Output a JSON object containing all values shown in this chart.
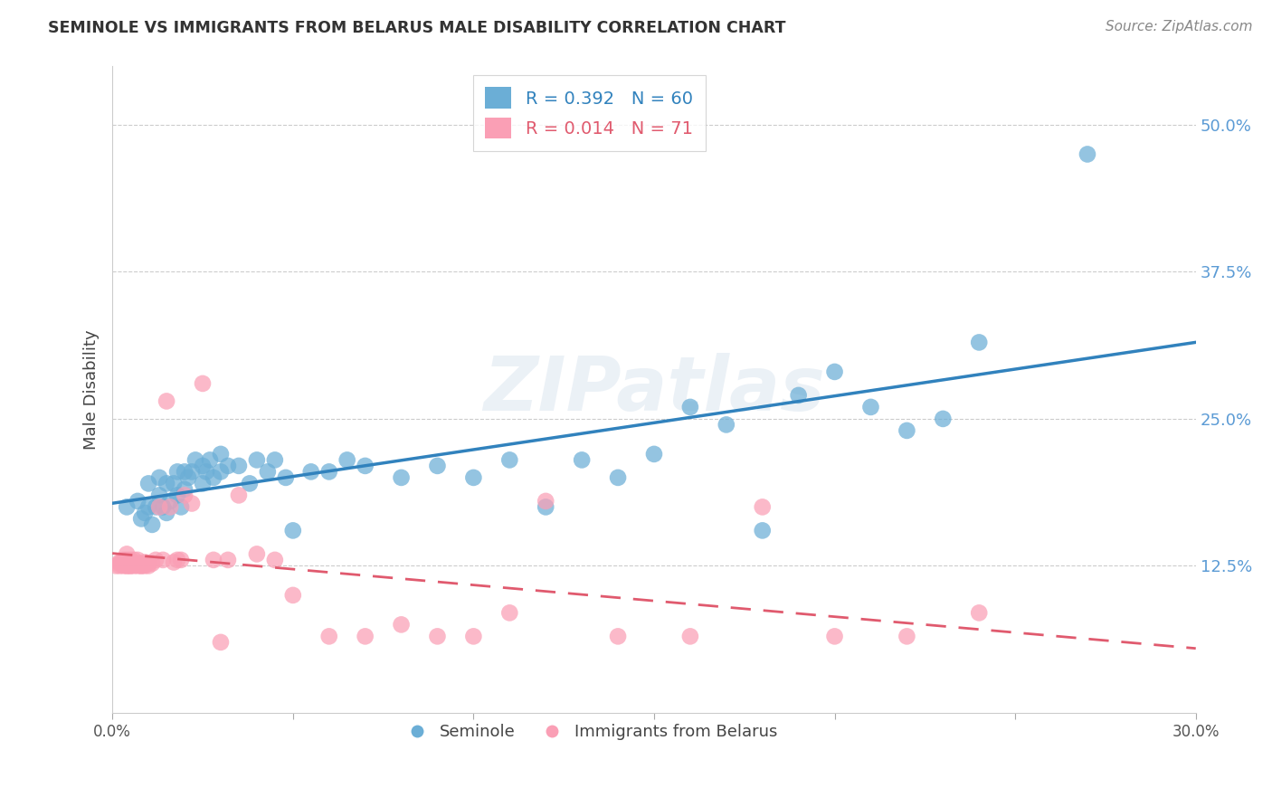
{
  "title": "SEMINOLE VS IMMIGRANTS FROM BELARUS MALE DISABILITY CORRELATION CHART",
  "source": "Source: ZipAtlas.com",
  "ylabel": "Male Disability",
  "ytick_labels": [
    "50.0%",
    "37.5%",
    "25.0%",
    "12.5%"
  ],
  "ytick_values": [
    0.5,
    0.375,
    0.25,
    0.125
  ],
  "legend1_r": "R = 0.392",
  "legend1_n": "N = 60",
  "legend2_r": "R = 0.014",
  "legend2_n": "N = 71",
  "xlim": [
    0.0,
    0.3
  ],
  "ylim": [
    0.0,
    0.55
  ],
  "color_blue": "#6baed6",
  "color_pink": "#fa9fb5",
  "color_blue_line": "#3182bd",
  "color_pink_line": "#e05a6e",
  "watermark": "ZIPatlas",
  "seminole_x": [
    0.004,
    0.007,
    0.008,
    0.009,
    0.01,
    0.01,
    0.011,
    0.012,
    0.013,
    0.013,
    0.014,
    0.015,
    0.015,
    0.016,
    0.017,
    0.018,
    0.018,
    0.019,
    0.02,
    0.02,
    0.021,
    0.022,
    0.023,
    0.025,
    0.025,
    0.026,
    0.027,
    0.028,
    0.03,
    0.03,
    0.032,
    0.035,
    0.038,
    0.04,
    0.043,
    0.045,
    0.048,
    0.05,
    0.055,
    0.06,
    0.065,
    0.07,
    0.08,
    0.09,
    0.1,
    0.11,
    0.12,
    0.13,
    0.14,
    0.15,
    0.16,
    0.17,
    0.18,
    0.19,
    0.2,
    0.21,
    0.22,
    0.23,
    0.24,
    0.27
  ],
  "seminole_y": [
    0.175,
    0.18,
    0.165,
    0.17,
    0.175,
    0.195,
    0.16,
    0.175,
    0.185,
    0.2,
    0.175,
    0.17,
    0.195,
    0.18,
    0.195,
    0.185,
    0.205,
    0.175,
    0.19,
    0.205,
    0.2,
    0.205,
    0.215,
    0.195,
    0.21,
    0.205,
    0.215,
    0.2,
    0.205,
    0.22,
    0.21,
    0.21,
    0.195,
    0.215,
    0.205,
    0.215,
    0.2,
    0.155,
    0.205,
    0.205,
    0.215,
    0.21,
    0.2,
    0.21,
    0.2,
    0.215,
    0.175,
    0.215,
    0.2,
    0.22,
    0.26,
    0.245,
    0.155,
    0.27,
    0.29,
    0.26,
    0.24,
    0.25,
    0.315,
    0.475
  ],
  "belarus_x": [
    0.001,
    0.002,
    0.002,
    0.002,
    0.003,
    0.003,
    0.003,
    0.003,
    0.003,
    0.004,
    0.004,
    0.004,
    0.004,
    0.004,
    0.004,
    0.004,
    0.005,
    0.005,
    0.005,
    0.005,
    0.005,
    0.005,
    0.005,
    0.006,
    0.006,
    0.006,
    0.006,
    0.007,
    0.007,
    0.007,
    0.007,
    0.008,
    0.008,
    0.008,
    0.009,
    0.009,
    0.009,
    0.01,
    0.01,
    0.011,
    0.012,
    0.013,
    0.014,
    0.015,
    0.016,
    0.017,
    0.018,
    0.019,
    0.02,
    0.022,
    0.025,
    0.028,
    0.03,
    0.032,
    0.035,
    0.04,
    0.045,
    0.05,
    0.06,
    0.07,
    0.08,
    0.09,
    0.1,
    0.11,
    0.12,
    0.14,
    0.16,
    0.18,
    0.2,
    0.22,
    0.24
  ],
  "belarus_y": [
    0.125,
    0.128,
    0.125,
    0.127,
    0.125,
    0.126,
    0.127,
    0.128,
    0.13,
    0.125,
    0.125,
    0.126,
    0.127,
    0.128,
    0.13,
    0.135,
    0.125,
    0.125,
    0.126,
    0.126,
    0.127,
    0.128,
    0.13,
    0.125,
    0.126,
    0.127,
    0.13,
    0.125,
    0.126,
    0.127,
    0.13,
    0.125,
    0.125,
    0.127,
    0.125,
    0.126,
    0.128,
    0.125,
    0.127,
    0.127,
    0.13,
    0.175,
    0.13,
    0.265,
    0.175,
    0.128,
    0.13,
    0.13,
    0.185,
    0.178,
    0.28,
    0.13,
    0.06,
    0.13,
    0.185,
    0.135,
    0.13,
    0.1,
    0.065,
    0.065,
    0.075,
    0.065,
    0.065,
    0.085,
    0.18,
    0.065,
    0.065,
    0.175,
    0.065,
    0.065,
    0.085
  ]
}
